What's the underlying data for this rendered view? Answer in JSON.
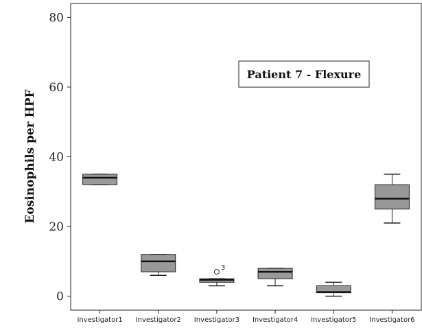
{
  "chart_data": {
    "type": "box",
    "title": "Patient 7 - Flexure",
    "ylabel": "Eosinophils per HPF",
    "xlabel": "",
    "ylim": [
      -4,
      84
    ],
    "yticks": [
      0,
      20,
      40,
      60,
      80
    ],
    "grid": false,
    "categories": [
      "Investigator1",
      "Investigator2",
      "Investigator3",
      "Investigator4",
      "Investigator5",
      "Investigator6"
    ],
    "boxes": [
      {
        "whisker_low": 32,
        "q1": 32,
        "median": 34,
        "q3": 35,
        "whisker_high": 35,
        "outliers": []
      },
      {
        "whisker_low": 6,
        "q1": 7,
        "median": 10,
        "q3": 12,
        "whisker_high": 12,
        "outliers": []
      },
      {
        "whisker_low": 3,
        "q1": 4,
        "median": 4.7,
        "q3": 5,
        "whisker_high": 5,
        "outliers": [
          {
            "value": 7,
            "label": "3"
          }
        ]
      },
      {
        "whisker_low": 3,
        "q1": 5,
        "median": 7,
        "q3": 8,
        "whisker_high": 8,
        "outliers": []
      },
      {
        "whisker_low": 0,
        "q1": 1,
        "median": 1.2,
        "q3": 3,
        "whisker_high": 4,
        "outliers": []
      },
      {
        "whisker_low": 21,
        "q1": 25,
        "median": 28,
        "q3": 32,
        "whisker_high": 35,
        "outliers": []
      }
    ],
    "colors": {
      "box_fill": "#999999",
      "stroke": "#222222"
    }
  }
}
